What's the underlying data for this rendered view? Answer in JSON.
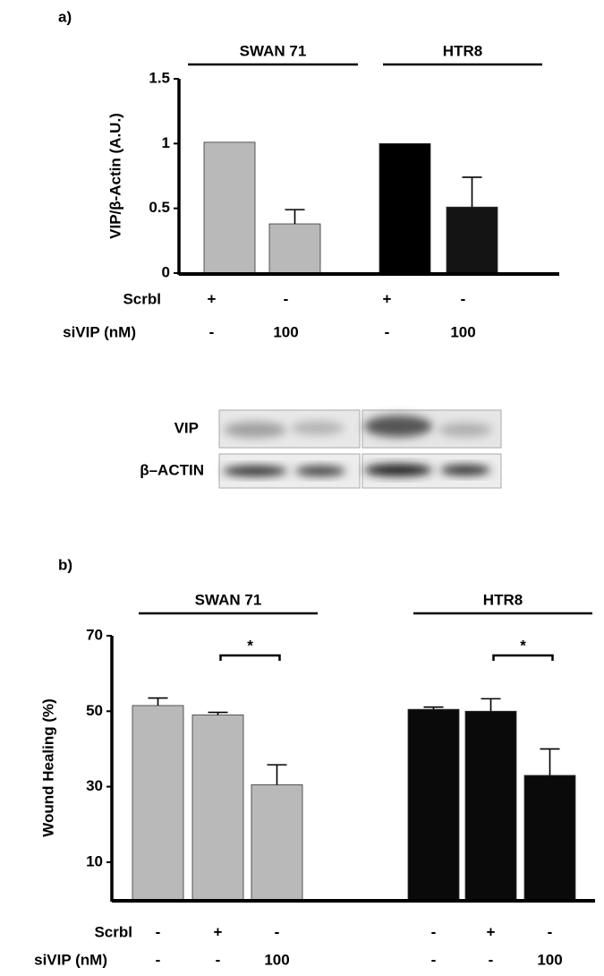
{
  "chart_data": [
    {
      "type": "bar",
      "label": "a)",
      "ylabel": "VIP/β-Actin (A.U.)",
      "ylim": [
        0,
        1.5
      ],
      "yticks": [
        0,
        0.5,
        1,
        1.5
      ],
      "groups": [
        "SWAN 71",
        "HTR8"
      ],
      "values": [
        1.01,
        0.38,
        1.0,
        0.51
      ],
      "errors": [
        0,
        0.11,
        0,
        0.23
      ],
      "colors": [
        "#b9b9b9",
        "#b9b9b9",
        "#000000",
        "#141414"
      ],
      "rows": [
        {
          "name": "Scrbl",
          "values": [
            "+",
            "-",
            "+",
            "-"
          ]
        },
        {
          "name": "siVIP (nM)",
          "values": [
            "-",
            "100",
            "-",
            "100"
          ]
        }
      ]
    },
    {
      "type": "bar",
      "label": "b)",
      "ylabel": "Wound Healing (%)",
      "ylim": [
        0,
        70
      ],
      "yticks": [
        10,
        30,
        50,
        70
      ],
      "groups": [
        "SWAN 71",
        "HTR8"
      ],
      "values": [
        51.5,
        49,
        30.5,
        50.5,
        50,
        33
      ],
      "errors": [
        2,
        0.7,
        5.3,
        0.6,
        3.3,
        7
      ],
      "colors": [
        "#b9b9b9",
        "#b9b9b9",
        "#b9b9b9",
        "#0a0a0a",
        "#0a0a0a",
        "#0a0a0a"
      ],
      "annotations": [
        "*",
        "*"
      ],
      "rows": [
        {
          "name": "Scrbl",
          "values": [
            "-",
            "+",
            "-",
            "-",
            "+",
            "-"
          ]
        },
        {
          "name": "siVIP (nM)",
          "values": [
            "-",
            "-",
            "100",
            "-",
            "-",
            "100"
          ]
        }
      ]
    }
  ],
  "blot": {
    "labels": [
      "VIP",
      "β–ACTIN"
    ]
  }
}
